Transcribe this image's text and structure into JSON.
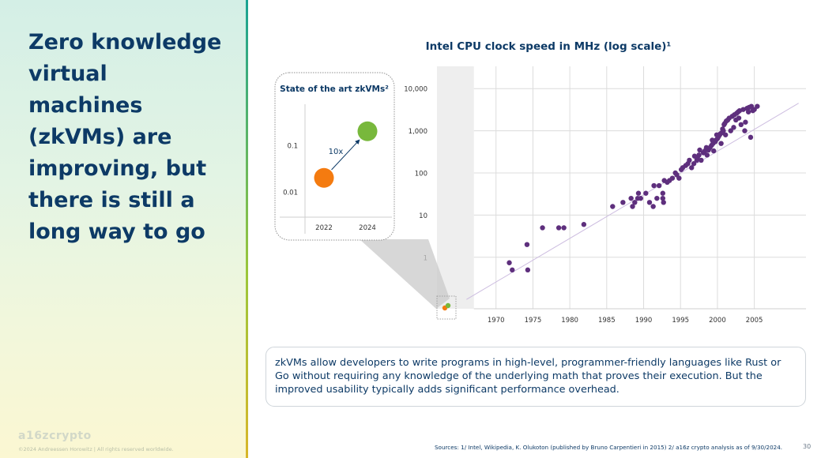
{
  "headline": "Zero knowledge virtual machines (zkVMs) are improving, but there is still a long way to go",
  "footer": {
    "logo": "a16zcrypto",
    "copyright": "©2024 Andreessen Horowitz  |  All rights reserved worldwide.",
    "sources": "Sources: 1/ Intel, Wikipedia, K. Olukoton (published by Bruno Carpentieri in 2015) 2/ a16z crypto analysis as of 9/30/2024.",
    "page_number": "30"
  },
  "info_text": "zkVMs allow developers to write programs in high-level, programmer-friendly languages like Rust or Go without requiring any knowledge of the underlying math that proves their execution. But the improved usability typically adds significant performance overhead.",
  "colors": {
    "headline": "#0d3a66",
    "cpu_points": "#5e2f7d",
    "trend_line": "#cdbde0",
    "zkvm_2022": "#f47b10",
    "zkvm_2024": "#78b83c",
    "shaded_band": "#eeeeee",
    "divider_gradient": [
      "#1aa394",
      "#9cc63a",
      "#d8b62a"
    ]
  },
  "chart_data": [
    {
      "type": "scatter",
      "title": "Intel CPU clock speed in MHz (log scale)¹",
      "xlabel": "",
      "ylabel": "",
      "y_scale": "log",
      "xlim": [
        1962,
        2012
      ],
      "ylim": [
        0.06,
        12000
      ],
      "x_ticks": [
        1970,
        1975,
        1980,
        1985,
        1990,
        1995,
        2000,
        2005
      ],
      "y_ticks": [
        1,
        10,
        100,
        1000,
        10000
      ],
      "y_tick_labels": [
        "1",
        "10",
        "100",
        "1,000",
        "10,000"
      ],
      "grid": true,
      "shaded_x_range": [
        1962,
        1967
      ],
      "trend_line": {
        "x": [
          1966,
          2011
        ],
        "y": [
          0.1,
          4500
        ]
      },
      "points": [
        [
          1971.8,
          0.74
        ],
        [
          1972.2,
          0.5
        ],
        [
          1974.2,
          2
        ],
        [
          1974.3,
          0.5
        ],
        [
          1976.3,
          5
        ],
        [
          1978.5,
          5
        ],
        [
          1979.2,
          5
        ],
        [
          1981.9,
          6
        ],
        [
          1985.8,
          16
        ],
        [
          1987.2,
          20
        ],
        [
          1988.3,
          25
        ],
        [
          1988.5,
          16
        ],
        [
          1988.8,
          20
        ],
        [
          1989.2,
          25
        ],
        [
          1989.3,
          33
        ],
        [
          1989.6,
          25
        ],
        [
          1990.3,
          33
        ],
        [
          1990.8,
          20
        ],
        [
          1991.3,
          16
        ],
        [
          1991.4,
          50
        ],
        [
          1991.8,
          25
        ],
        [
          1992.1,
          50
        ],
        [
          1992.6,
          25
        ],
        [
          1992.6,
          33
        ],
        [
          1992.7,
          20
        ],
        [
          1992.8,
          66
        ],
        [
          1993.2,
          60
        ],
        [
          1993.5,
          66
        ],
        [
          1993.9,
          75
        ],
        [
          1994.3,
          100
        ],
        [
          1994.5,
          90
        ],
        [
          1994.8,
          75
        ],
        [
          1995.1,
          120
        ],
        [
          1995.3,
          133
        ],
        [
          1995.7,
          150
        ],
        [
          1996.0,
          166
        ],
        [
          1996.2,
          200
        ],
        [
          1996.5,
          133
        ],
        [
          1996.8,
          166
        ],
        [
          1997.2,
          200
        ],
        [
          1997.3,
          233
        ],
        [
          1997.5,
          266
        ],
        [
          1997.8,
          200
        ],
        [
          1998.1,
          300
        ],
        [
          1998.3,
          333
        ],
        [
          1998.6,
          266
        ],
        [
          1998.8,
          350
        ],
        [
          1999.0,
          400
        ],
        [
          1999.2,
          450
        ],
        [
          1999.4,
          500
        ],
        [
          1999.5,
          333
        ],
        [
          1999.7,
          550
        ],
        [
          1999.8,
          600
        ],
        [
          2000.0,
          650
        ],
        [
          2000.1,
          700
        ],
        [
          2000.2,
          750
        ],
        [
          2000.3,
          800
        ],
        [
          2000.4,
          850
        ],
        [
          2000.6,
          900
        ],
        [
          2000.8,
          1000
        ],
        [
          2000.9,
          1400
        ],
        [
          2001.0,
          1500
        ],
        [
          2001.2,
          1700
        ],
        [
          2001.4,
          1800
        ],
        [
          2001.6,
          2000
        ],
        [
          2002.0,
          2200
        ],
        [
          2002.3,
          2400
        ],
        [
          2002.6,
          2600
        ],
        [
          2002.8,
          2800
        ],
        [
          2003.0,
          3000
        ],
        [
          2003.2,
          1400
        ],
        [
          2003.5,
          3200
        ],
        [
          2004.0,
          3400
        ],
        [
          2004.3,
          3600
        ],
        [
          2004.6,
          3800
        ],
        [
          2003.8,
          1600
        ],
        [
          2004.2,
          2800
        ],
        [
          2005.0,
          3200
        ],
        [
          1998.5,
          400
        ],
        [
          1999.9,
          800
        ],
        [
          2001.8,
          1000
        ],
        [
          2002.2,
          1200
        ],
        [
          2003.7,
          1000
        ],
        [
          2004.5,
          700
        ],
        [
          2000.5,
          500
        ],
        [
          1997.6,
          350
        ],
        [
          1996.9,
          250
        ],
        [
          2005.4,
          3800
        ],
        [
          2004.8,
          3000
        ],
        [
          1999.3,
          600
        ],
        [
          2000.7,
          1100
        ],
        [
          2001.1,
          800
        ],
        [
          2002.5,
          1800
        ],
        [
          2002.9,
          2000
        ]
      ]
    },
    {
      "type": "scatter",
      "title": "State of the art zkVMs²",
      "y_scale": "log",
      "y_ticks": [
        0.01,
        0.1
      ],
      "y_tick_labels": [
        "0.01",
        "0.1"
      ],
      "categories": [
        "2022",
        "2024"
      ],
      "values": [
        0.02,
        0.2
      ],
      "annotation": "10x",
      "series": [
        {
          "category": "2022",
          "value": 0.02,
          "color": "#f47b10"
        },
        {
          "category": "2024",
          "value": 0.2,
          "color": "#78b83c"
        }
      ]
    }
  ]
}
